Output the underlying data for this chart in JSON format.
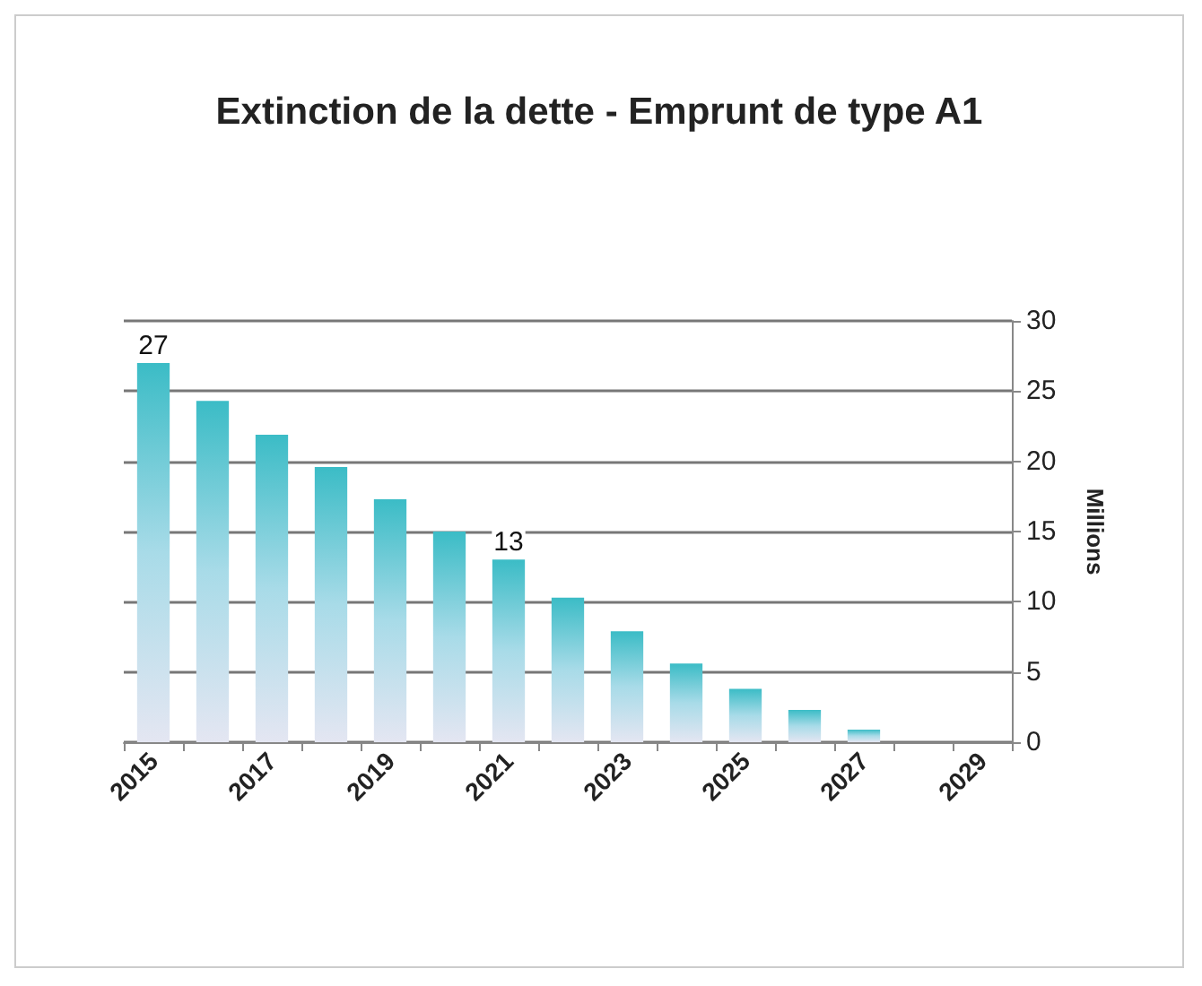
{
  "chart_data": {
    "type": "bar",
    "title": "Extinction de la dette - Emprunt de type A1",
    "ylabel": "Millions",
    "categories": [
      "2015",
      null,
      "2017",
      null,
      "2019",
      null,
      "2021",
      null,
      "2023",
      null,
      "2025",
      null,
      "2027",
      null,
      "2029"
    ],
    "values": [
      27,
      24.3,
      21.9,
      19.6,
      17.3,
      15,
      13,
      10.3,
      7.9,
      5.6,
      3.8,
      2.3,
      0.9,
      0,
      0
    ],
    "value_labels": [
      "27",
      null,
      null,
      null,
      null,
      null,
      "13",
      null,
      null,
      null,
      null,
      null,
      null,
      null,
      null
    ],
    "color": "#3bbcc6",
    "ylim": [
      0,
      30
    ],
    "yticks": [
      0,
      5,
      10,
      15,
      20,
      25,
      30
    ],
    "grid": "y"
  }
}
